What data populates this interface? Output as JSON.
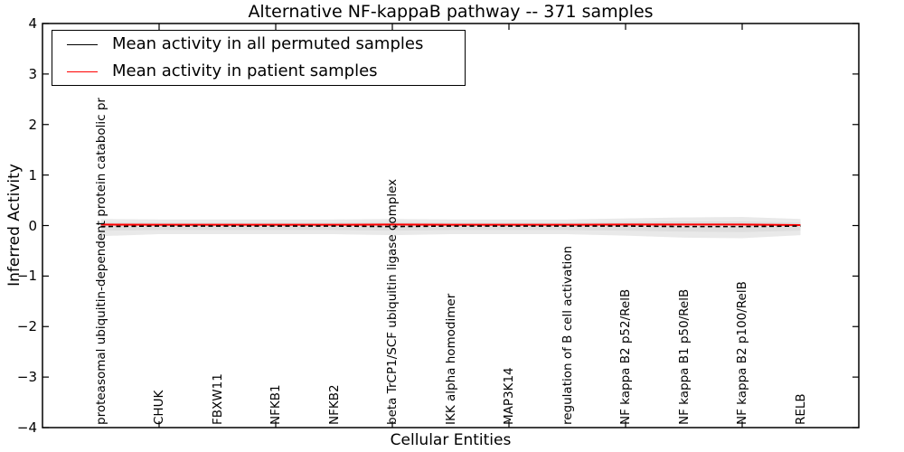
{
  "chart_data": {
    "type": "line",
    "title": "Alternative NF-kappaB pathway -- 371 samples",
    "xlabel": "Cellular Entities",
    "ylabel": "Inferred Activity",
    "xlim": [
      0,
      14
    ],
    "ylim": [
      -4,
      4
    ],
    "grid": false,
    "yticks": [
      {
        "v": 4,
        "label": "4"
      },
      {
        "v": 3,
        "label": "3"
      },
      {
        "v": 2,
        "label": "2"
      },
      {
        "v": 1,
        "label": "1"
      },
      {
        "v": 0,
        "label": "0"
      },
      {
        "v": -1,
        "label": "−1"
      },
      {
        "v": -2,
        "label": "−2"
      },
      {
        "v": -3,
        "label": "−3"
      },
      {
        "v": -4,
        "label": "−4"
      }
    ],
    "xtick_mark_positions": [
      2,
      4,
      6,
      8,
      10,
      12
    ],
    "x": [
      1,
      2,
      3,
      4,
      5,
      6,
      7,
      8,
      9,
      10,
      11,
      12,
      13
    ],
    "categories": [
      "proteasomal ubiquitin-dependent protein catabolic pr",
      "CHUK",
      "FBXW11",
      "NFKB1",
      "NFKB2",
      "beta TrCP1/SCF ubiquitin ligase complex",
      "IKK alpha homodimer",
      "MAP3K14",
      "regulation of B cell activation",
      "NF kappa B2 p52/RelB",
      "NF kappa B1 p50/RelB",
      "NF kappa B2 p100/RelB",
      "RELB"
    ],
    "series": [
      {
        "name": "Mean activity in all permuted samples",
        "color": "#000000",
        "dash": "5 3.5",
        "width": 1.6,
        "draw_order": 2,
        "values": [
          -0.02,
          -0.01,
          -0.01,
          -0.01,
          -0.01,
          -0.02,
          -0.01,
          -0.01,
          -0.01,
          -0.01,
          -0.02,
          -0.02,
          -0.01
        ]
      },
      {
        "name": "Mean activity in patient samples",
        "color": "#ff0000",
        "dash": "",
        "width": 2,
        "draw_order": 1,
        "values": [
          0.02,
          0.015,
          0.015,
          0.015,
          0.015,
          0.02,
          0.015,
          0.015,
          0.015,
          0.02,
          0.02,
          0.02,
          0.01
        ]
      }
    ],
    "bands": [
      {
        "name": "std-band-outer",
        "color": "#e9e9e9",
        "upper": [
          0.13,
          0.12,
          0.12,
          0.12,
          0.12,
          0.13,
          0.12,
          0.12,
          0.12,
          0.14,
          0.16,
          0.17,
          0.13
        ],
        "lower": [
          -0.21,
          -0.17,
          -0.17,
          -0.17,
          -0.17,
          -0.19,
          -0.17,
          -0.17,
          -0.17,
          -0.2,
          -0.24,
          -0.25,
          -0.19
        ]
      },
      {
        "name": "std-band-inner",
        "color": "#dedede",
        "upper": [
          0.07,
          0.06,
          0.06,
          0.06,
          0.06,
          0.07,
          0.06,
          0.06,
          0.06,
          0.07,
          0.08,
          0.08,
          0.06
        ],
        "lower": [
          -0.1,
          -0.09,
          -0.09,
          -0.09,
          -0.09,
          -0.1,
          -0.09,
          -0.09,
          -0.09,
          -0.1,
          -0.12,
          -0.13,
          -0.1
        ]
      }
    ],
    "legend": {
      "position": "upper left",
      "entries": [
        {
          "label": "Mean activity in all permuted samples",
          "color": "#000000"
        },
        {
          "label": "Mean activity in patient samples",
          "color": "#ff0000"
        }
      ]
    }
  }
}
